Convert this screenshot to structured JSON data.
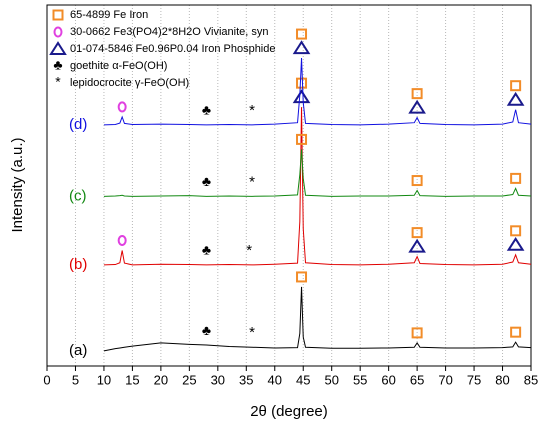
{
  "chart_data": {
    "type": "line",
    "xlabel": "2θ (degree)",
    "ylabel": "Intensity (a.u.)",
    "xlim": [
      0,
      85
    ],
    "xticks": [
      0,
      5,
      10,
      15,
      20,
      25,
      30,
      35,
      40,
      45,
      50,
      55,
      60,
      65,
      70,
      75,
      80,
      85
    ],
    "ylim": [
      0,
      100
    ],
    "grid": true,
    "legend": "upper left",
    "x": [
      10,
      12,
      12.8,
      13.2,
      13.6,
      15,
      20,
      25,
      28,
      32,
      36,
      40,
      44,
      44.4,
      44.7,
      45,
      45.4,
      50,
      55,
      60,
      64.5,
      65,
      65.5,
      70,
      75,
      80,
      81.8,
      82.3,
      82.8,
      85
    ],
    "series": [
      {
        "name": "(a)",
        "color": "#000000",
        "values": [
          4.2,
          4.8,
          5.0,
          5.1,
          5.2,
          5.5,
          6.4,
          6.0,
          5.8,
          5.4,
          5.2,
          5.0,
          5.1,
          9,
          21.9,
          8,
          5.2,
          4.9,
          4.9,
          5.0,
          5.2,
          6.4,
          5.2,
          5.0,
          5.0,
          5.1,
          5.3,
          6.6,
          5.3,
          5.1
        ],
        "markers": [
          {
            "phase": 3,
            "x": 28
          },
          {
            "phase": 4,
            "x": 36
          },
          {
            "phase": 0,
            "x": 44.7
          },
          {
            "phase": 0,
            "x": 65
          },
          {
            "phase": 0,
            "x": 82.3
          }
        ]
      },
      {
        "name": "(b)",
        "color": "#e00000",
        "values": [
          28,
          28.1,
          28.6,
          32,
          28.5,
          28,
          28.2,
          28.1,
          28,
          28.1,
          28,
          28.2,
          28.5,
          40,
          71.7,
          38,
          28.6,
          28.1,
          28,
          28.2,
          28.6,
          30.3,
          28.4,
          28.1,
          28,
          28.2,
          28.8,
          30.8,
          28.6,
          28.2
        ],
        "markers": [
          {
            "phase": 1,
            "x": 13.2
          },
          {
            "phase": 3,
            "x": 28
          },
          {
            "phase": 4,
            "x": 35.5
          },
          {
            "phase": 2,
            "x": 44.7
          },
          {
            "phase": 0,
            "x": 44.7
          },
          {
            "phase": 2,
            "x": 65
          },
          {
            "phase": 0,
            "x": 65
          },
          {
            "phase": 2,
            "x": 82.3
          },
          {
            "phase": 0,
            "x": 82.3
          }
        ]
      },
      {
        "name": "(c)",
        "color": "#118811",
        "values": [
          47,
          47.1,
          47.2,
          47.3,
          47.1,
          47,
          47.1,
          47.2,
          47,
          47.1,
          47,
          47.1,
          47.4,
          53,
          60,
          52,
          47.3,
          47,
          47.1,
          47.1,
          47.3,
          48.6,
          47.2,
          47,
          47.1,
          47.1,
          47.5,
          49.2,
          47.3,
          47.1
        ],
        "markers": [
          {
            "phase": 3,
            "x": 28
          },
          {
            "phase": 4,
            "x": 36
          },
          {
            "phase": 0,
            "x": 44.7
          },
          {
            "phase": 0,
            "x": 65
          },
          {
            "phase": 0,
            "x": 82.3
          }
        ]
      },
      {
        "name": "(d)",
        "color": "#1010e0",
        "values": [
          66.8,
          66.9,
          67.3,
          69,
          67.2,
          66.9,
          67,
          66.9,
          66.8,
          66.9,
          66.8,
          67,
          67.4,
          75,
          85.3,
          73,
          67.2,
          66.9,
          66.8,
          67,
          67.4,
          68.8,
          67.2,
          66.9,
          66.8,
          67,
          67.6,
          71,
          67.4,
          67
        ],
        "markers": [
          {
            "phase": 1,
            "x": 13.2
          },
          {
            "phase": 3,
            "x": 28
          },
          {
            "phase": 4,
            "x": 36
          },
          {
            "phase": 2,
            "x": 44.7
          },
          {
            "phase": 0,
            "x": 44.7
          },
          {
            "phase": 2,
            "x": 65
          },
          {
            "phase": 0,
            "x": 65
          },
          {
            "phase": 2,
            "x": 82.3
          },
          {
            "phase": 0,
            "x": 82.3
          }
        ]
      }
    ],
    "phases": [
      {
        "name": "65-4899 Fe Iron",
        "shape": "square",
        "color": "#f28c28"
      },
      {
        "name": "30-0662 Fe3(PO4)2*8H2O Vivianite, syn",
        "shape": "circle",
        "color": "#e040e0"
      },
      {
        "name": "01-074-5846 Fe0.96P0.04 Iron Phosphide",
        "shape": "triangle",
        "color": "#1a1a8c"
      },
      {
        "name": "goethite α-FeO(OH)",
        "glyph": "♣",
        "color": "#000000"
      },
      {
        "name": "lepidocrocite γ-FeO(OH)",
        "glyph": "*",
        "color": "#000000"
      }
    ]
  }
}
